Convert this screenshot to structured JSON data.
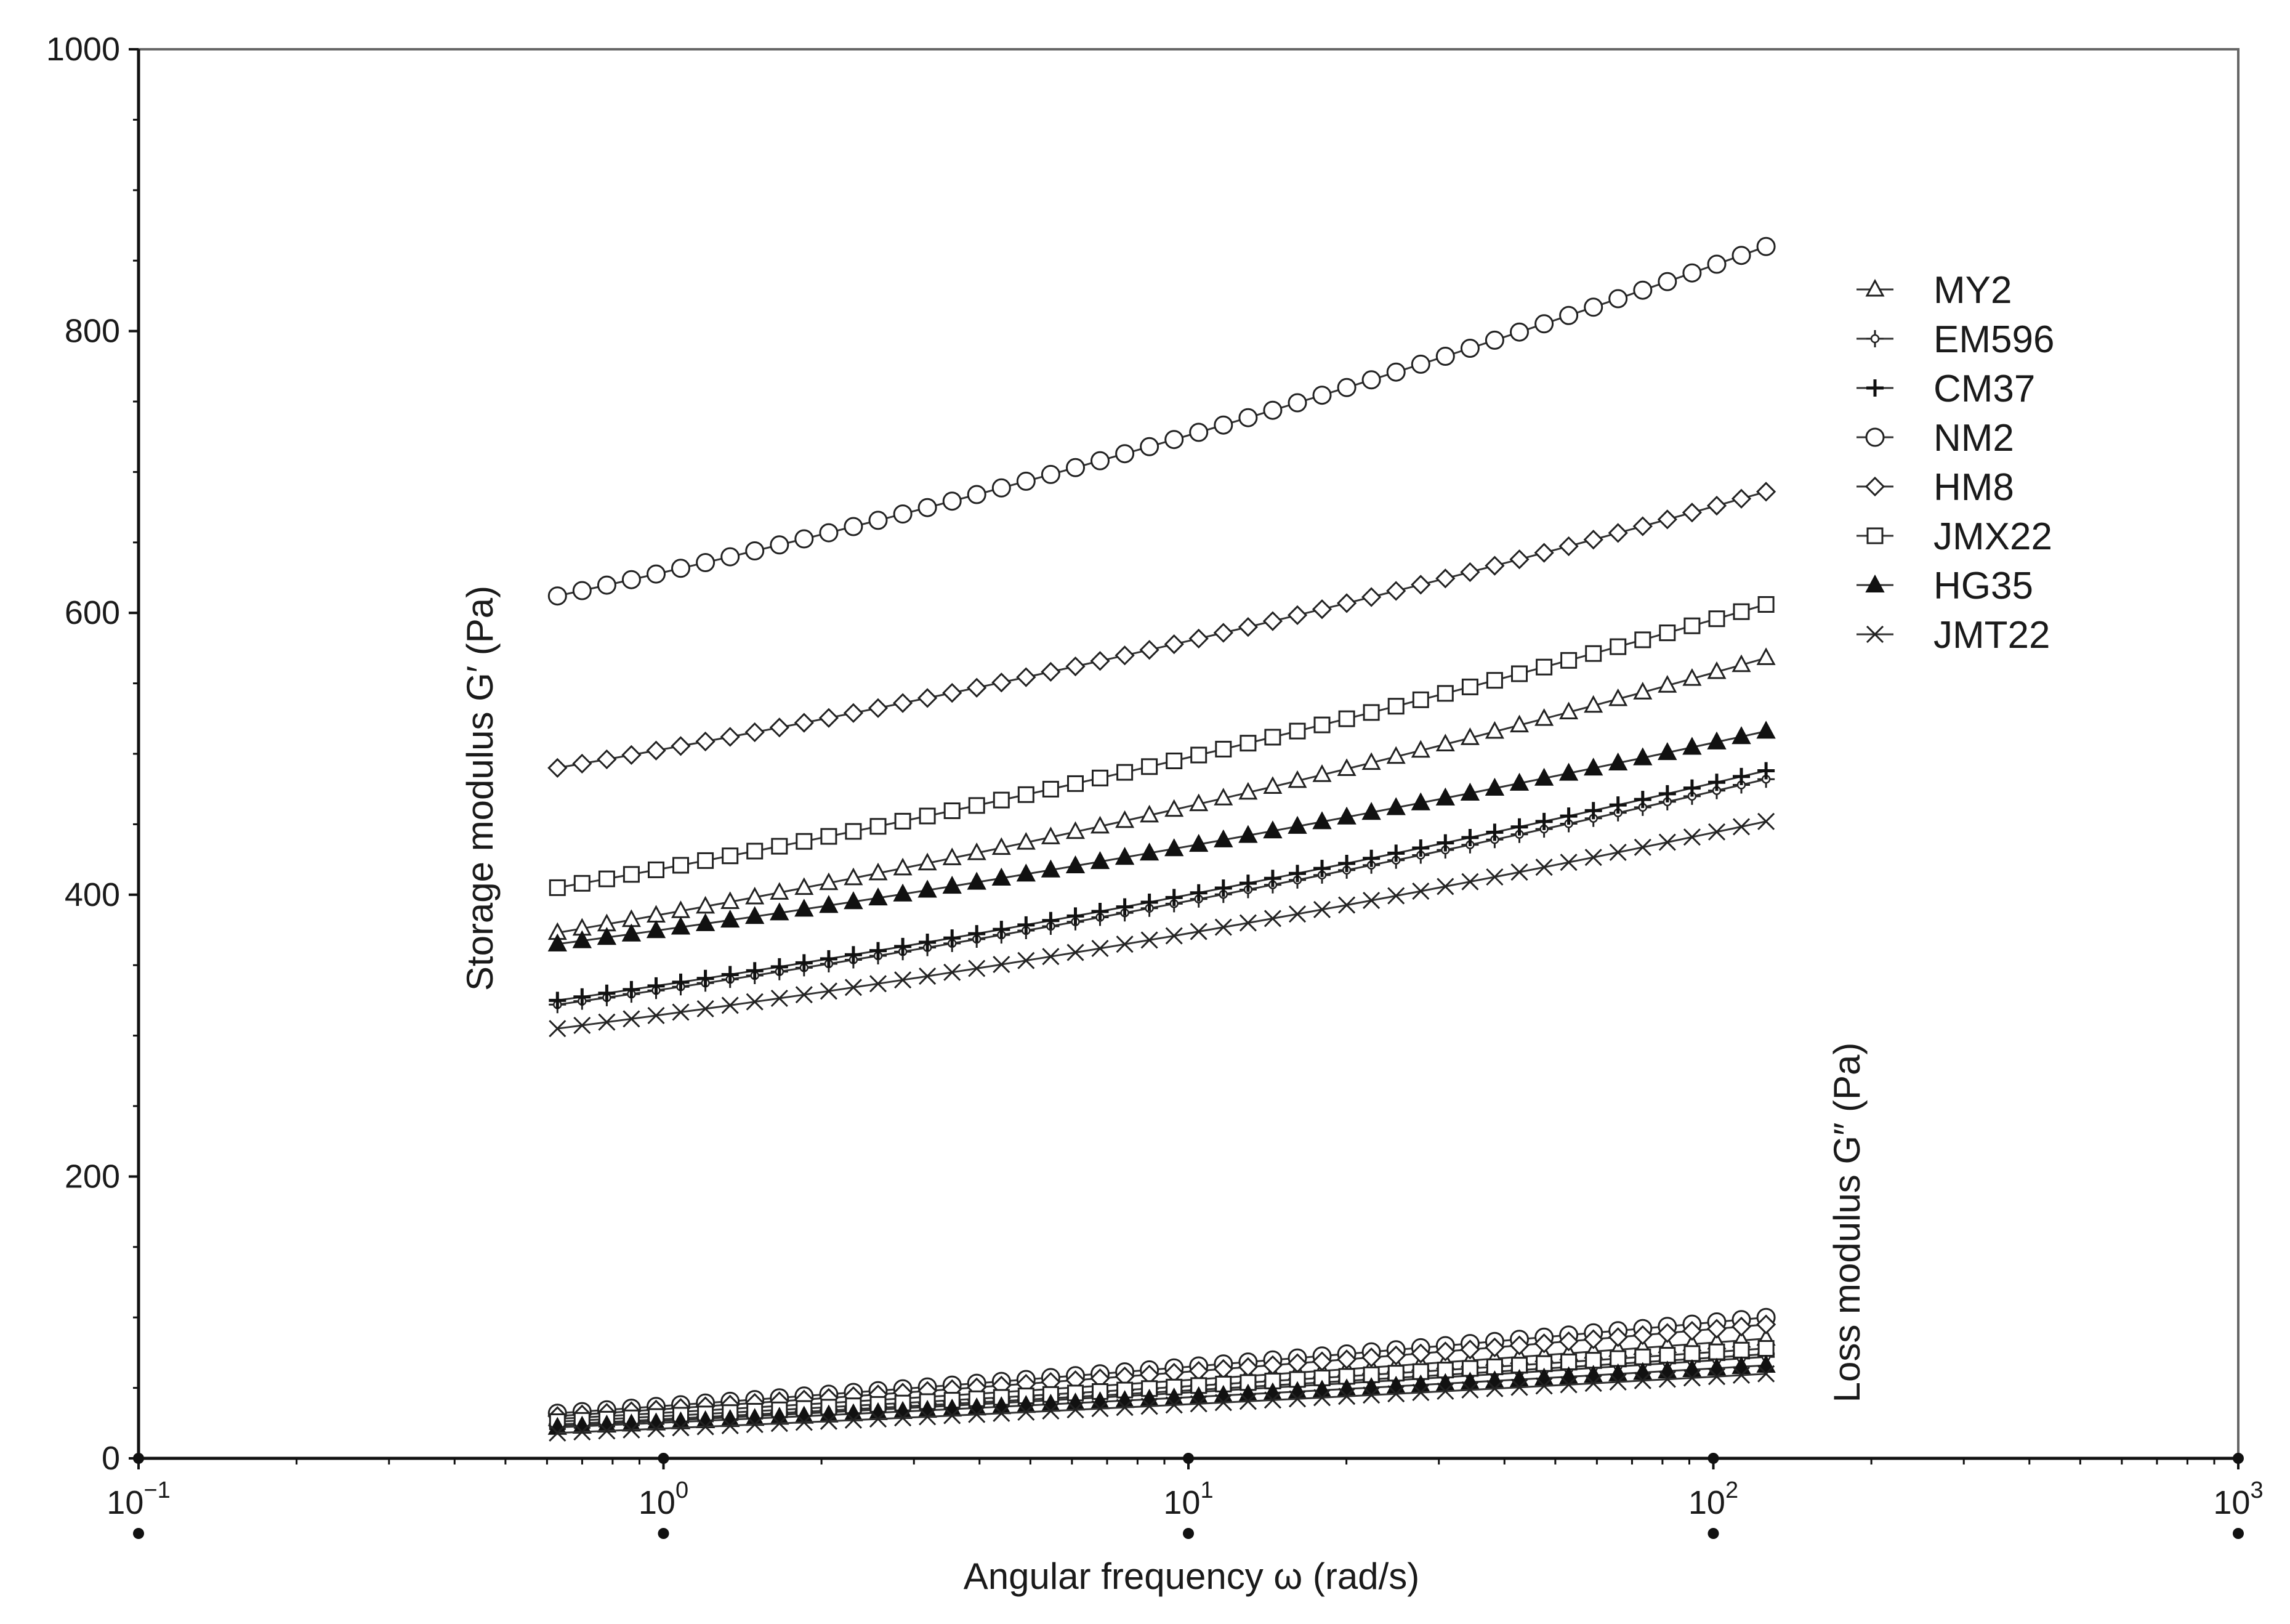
{
  "chart_data": {
    "type": "scatter",
    "title": "",
    "xlabel": "Angular frequency ω (rad/s)",
    "ylabel": "Storage modulus G′ (Pa)",
    "y2label": "Loss modulus G″ (Pa)",
    "x_scale": "log",
    "xlim": [
      0.1,
      1000
    ],
    "ylim": [
      0,
      1000
    ],
    "x_ticks": [
      {
        "value": 0.1,
        "base": "10",
        "exp": "−1"
      },
      {
        "value": 1,
        "base": "10",
        "exp": "0"
      },
      {
        "value": 10,
        "base": "10",
        "exp": "1"
      },
      {
        "value": 100,
        "base": "10",
        "exp": "2"
      },
      {
        "value": 1000,
        "base": "10",
        "exp": "3"
      }
    ],
    "y_ticks": [
      "0",
      "200",
      "400",
      "600",
      "800",
      "1000"
    ],
    "grid": false,
    "legend_position": "top-right",
    "x_range": [
      0.628,
      126
    ],
    "points_per_series": 50,
    "series": [
      {
        "name": "MY2",
        "marker": "triangle-open",
        "gp_range": [
          373,
          568
        ],
        "gpp_range": [
          28,
          85
        ]
      },
      {
        "name": "EM596",
        "marker": "plus-open",
        "gp_range": [
          322,
          482
        ],
        "gpp_range": [
          23,
          72
        ]
      },
      {
        "name": "CM37",
        "marker": "plus",
        "gp_range": [
          325,
          488
        ],
        "gpp_range": [
          24,
          74
        ]
      },
      {
        "name": "NM2",
        "marker": "circle-open",
        "gp_range": [
          612,
          860
        ],
        "gpp_range": [
          32,
          100
        ]
      },
      {
        "name": "HM8",
        "marker": "diamond-open",
        "gp_range": [
          490,
          686
        ],
        "gpp_range": [
          30,
          95
        ]
      },
      {
        "name": "JMX22",
        "marker": "square-open",
        "gp_range": [
          405,
          606
        ],
        "gpp_range": [
          26,
          78
        ]
      },
      {
        "name": "HG35",
        "marker": "triangle-filled",
        "gp_range": [
          365,
          516
        ],
        "gpp_range": [
          22,
          66
        ]
      },
      {
        "name": "JMT22",
        "marker": "x",
        "gp_range": [
          305,
          452
        ],
        "gpp_range": [
          18,
          60
        ]
      }
    ]
  }
}
